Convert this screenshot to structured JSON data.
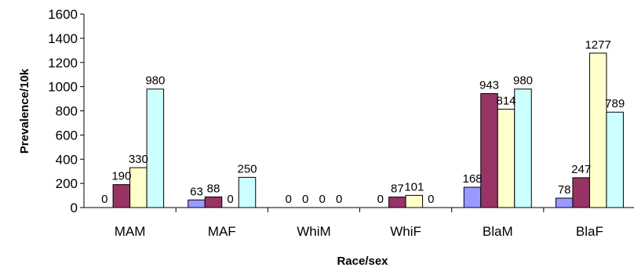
{
  "chart_data": {
    "type": "bar",
    "title": "",
    "xlabel": "Race/sex",
    "ylabel": "Prevalence/10k",
    "ylim": [
      0,
      1600
    ],
    "yticks": [
      0,
      200,
      400,
      600,
      800,
      1000,
      1200,
      1400,
      1600
    ],
    "grid": false,
    "legend": "none",
    "categories": [
      "MAM",
      "MAF",
      "WhiM",
      "WhiF",
      "BlaM",
      "BlaF"
    ],
    "series": [
      {
        "color": "#9999ff",
        "values": [
          0,
          63,
          0,
          0,
          168,
          78
        ]
      },
      {
        "color": "#993366",
        "values": [
          190,
          88,
          0,
          87,
          943,
          247
        ]
      },
      {
        "color": "#ffffcc",
        "values": [
          330,
          0,
          0,
          101,
          814,
          1277
        ]
      },
      {
        "color": "#ccffff",
        "values": [
          980,
          250,
          0,
          0,
          980,
          789
        ]
      }
    ]
  }
}
